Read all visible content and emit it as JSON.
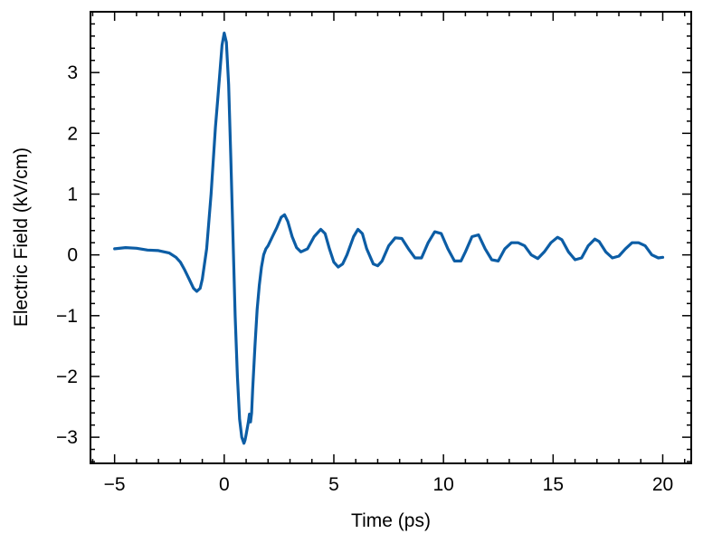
{
  "chart_data": {
    "type": "line",
    "title": "",
    "xlabel": "Time (ps)",
    "ylabel": "Electric Field (kV/cm)",
    "xlim": [
      -6.1,
      21.3
    ],
    "ylim": [
      -3.43,
      4.0
    ],
    "xticks": [
      -5,
      0,
      5,
      10,
      15,
      20
    ],
    "xtick_labels": [
      "−5",
      "0",
      "5",
      "10",
      "15",
      "20"
    ],
    "yticks": [
      -3,
      -2,
      -1,
      0,
      1,
      2,
      3
    ],
    "ytick_labels": [
      "−3",
      "−2",
      "−1",
      "0",
      "1",
      "2",
      "3"
    ],
    "x_minor_step": 1,
    "y_minor_step": 0.2,
    "grid": false,
    "legend": null,
    "series": [
      {
        "name": "Electric Field",
        "color": "#0C5DA5",
        "x": [
          -5.0,
          -4.5,
          -4.0,
          -3.5,
          -3.0,
          -2.5,
          -2.2,
          -2.0,
          -1.8,
          -1.6,
          -1.4,
          -1.25,
          -1.1,
          -1.0,
          -0.8,
          -0.6,
          -0.4,
          -0.3,
          -0.2,
          -0.1,
          0.0,
          0.1,
          0.2,
          0.3,
          0.4,
          0.5,
          0.6,
          0.7,
          0.8,
          0.9,
          0.95,
          1.0,
          1.1,
          1.15,
          1.2,
          1.25,
          1.3,
          1.4,
          1.5,
          1.6,
          1.7,
          1.8,
          1.9,
          2.0,
          2.2,
          2.4,
          2.6,
          2.75,
          2.9,
          3.1,
          3.3,
          3.5,
          3.8,
          4.1,
          4.4,
          4.6,
          4.8,
          5.0,
          5.2,
          5.4,
          5.6,
          5.9,
          6.1,
          6.3,
          6.5,
          6.8,
          7.0,
          7.2,
          7.5,
          7.8,
          8.1,
          8.4,
          8.7,
          9.0,
          9.3,
          9.6,
          9.9,
          10.2,
          10.5,
          10.8,
          11.0,
          11.3,
          11.6,
          11.9,
          12.2,
          12.5,
          12.8,
          13.1,
          13.4,
          13.7,
          14.0,
          14.3,
          14.6,
          14.9,
          15.2,
          15.4,
          15.7,
          16.0,
          16.3,
          16.6,
          16.9,
          17.1,
          17.4,
          17.7,
          18.0,
          18.3,
          18.6,
          18.9,
          19.2,
          19.5,
          19.8,
          20.0
        ],
        "y": [
          0.1,
          0.12,
          0.11,
          0.08,
          0.07,
          0.03,
          -0.04,
          -0.12,
          -0.25,
          -0.4,
          -0.55,
          -0.6,
          -0.55,
          -0.4,
          0.1,
          1.0,
          2.1,
          2.55,
          3.0,
          3.45,
          3.65,
          3.5,
          2.8,
          1.6,
          0.3,
          -1.0,
          -2.0,
          -2.7,
          -3.0,
          -3.1,
          -3.05,
          -2.95,
          -2.75,
          -2.62,
          -2.75,
          -2.6,
          -2.2,
          -1.5,
          -0.9,
          -0.5,
          -0.2,
          0.0,
          0.1,
          0.15,
          0.3,
          0.45,
          0.62,
          0.66,
          0.55,
          0.3,
          0.12,
          0.05,
          0.1,
          0.3,
          0.42,
          0.35,
          0.1,
          -0.12,
          -0.2,
          -0.15,
          0.0,
          0.3,
          0.42,
          0.35,
          0.1,
          -0.15,
          -0.18,
          -0.1,
          0.15,
          0.28,
          0.27,
          0.1,
          -0.05,
          -0.05,
          0.2,
          0.38,
          0.35,
          0.1,
          -0.1,
          -0.1,
          0.05,
          0.3,
          0.33,
          0.1,
          -0.08,
          -0.1,
          0.1,
          0.2,
          0.2,
          0.15,
          0.0,
          -0.06,
          0.05,
          0.2,
          0.29,
          0.25,
          0.05,
          -0.08,
          -0.05,
          0.15,
          0.26,
          0.22,
          0.05,
          -0.05,
          -0.02,
          0.1,
          0.2,
          0.2,
          0.15,
          0.0,
          -0.05,
          -0.04
        ]
      }
    ]
  }
}
